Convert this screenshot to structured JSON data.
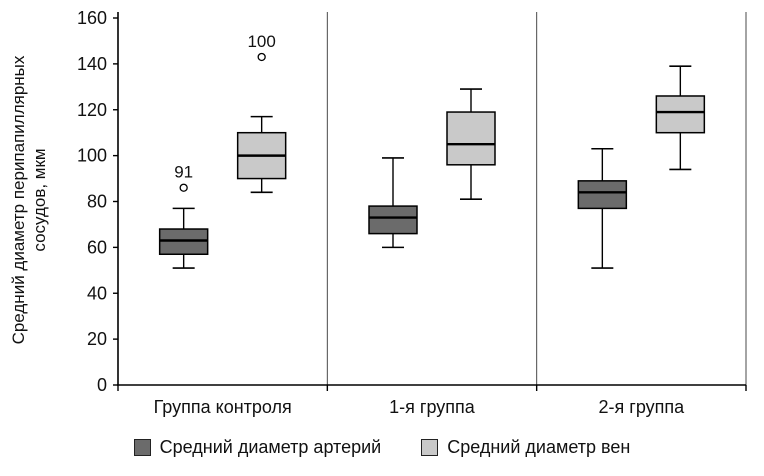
{
  "chart_data": {
    "type": "boxplot",
    "title": "",
    "ylabel_line1": "Средний диаметр перипапиллярных",
    "ylabel_line2": "сосудов, мкм",
    "ylim": [
      0,
      160
    ],
    "ytick_step": 20,
    "grid": false,
    "legend_position": "bottom",
    "categories": [
      "Группа контроля",
      "1-я группа",
      "2-я группа"
    ],
    "series": [
      {
        "name": "Средний диаметр артерий",
        "color": "#6b6b6b",
        "boxes": [
          {
            "low": 51,
            "q1": 57,
            "median": 63,
            "q3": 68,
            "high": 77,
            "outliers": [
              {
                "value": 86,
                "label": "91"
              }
            ]
          },
          {
            "low": 60,
            "q1": 66,
            "median": 73,
            "q3": 78,
            "high": 99,
            "outliers": []
          },
          {
            "low": 51,
            "q1": 77,
            "median": 84,
            "q3": 89,
            "high": 103,
            "outliers": []
          }
        ]
      },
      {
        "name": "Средний диаметр вен",
        "color": "#c9c9c9",
        "boxes": [
          {
            "low": 84,
            "q1": 90,
            "median": 100,
            "q3": 110,
            "high": 117,
            "outliers": [
              {
                "value": 143,
                "label": "100"
              }
            ]
          },
          {
            "low": 81,
            "q1": 96,
            "median": 105,
            "q3": 119,
            "high": 129,
            "outliers": []
          },
          {
            "low": 94,
            "q1": 110,
            "median": 119,
            "q3": 126,
            "high": 139,
            "outliers": []
          }
        ]
      }
    ]
  }
}
